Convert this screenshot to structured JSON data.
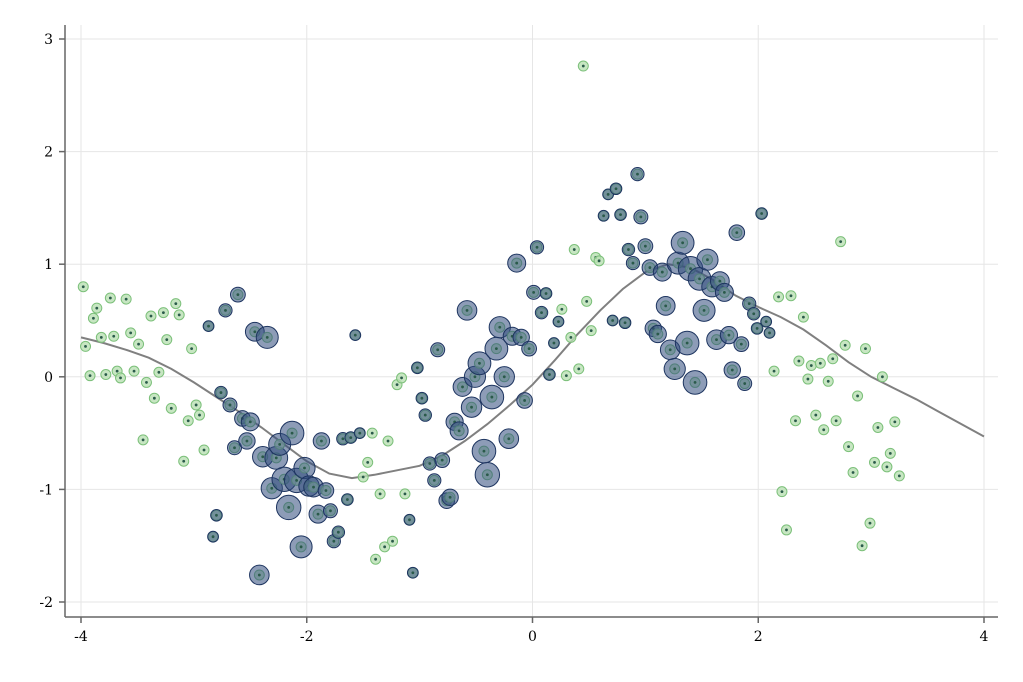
{
  "chart_data": {
    "type": "scatter",
    "title": "",
    "xlabel": "",
    "ylabel": "",
    "xlim": [
      -4,
      4
    ],
    "ylim": [
      -2,
      3
    ],
    "xticks": [
      -4,
      -2,
      0,
      2,
      4
    ],
    "xtick_labels": [
      "-4",
      "-2",
      "0",
      "2",
      "4"
    ],
    "yticks": [
      -2,
      -1,
      0,
      1,
      2,
      3
    ],
    "ytick_labels": [
      "-2",
      "-1",
      "0",
      "1",
      "2",
      "3"
    ],
    "grid": true,
    "colors": {
      "ring_fill": "#b9e0b3",
      "ring_stroke": "#7cc07a",
      "bubble_fill": "#2f4b7c",
      "bubble_stroke": "#1e3560",
      "trend": "#808080"
    },
    "points": [
      {
        "x": -3.98,
        "y": 0.8,
        "w": 0
      },
      {
        "x": -3.96,
        "y": 0.27,
        "w": 0
      },
      {
        "x": -3.92,
        "y": 0.01,
        "w": 0
      },
      {
        "x": -3.89,
        "y": 0.52,
        "w": 0
      },
      {
        "x": -3.86,
        "y": 0.61,
        "w": 0
      },
      {
        "x": -3.82,
        "y": 0.35,
        "w": 0
      },
      {
        "x": -3.78,
        "y": 0.02,
        "w": 0
      },
      {
        "x": -3.74,
        "y": 0.7,
        "w": 0
      },
      {
        "x": -3.71,
        "y": 0.36,
        "w": 0
      },
      {
        "x": -3.68,
        "y": 0.05,
        "w": 0
      },
      {
        "x": -3.65,
        "y": -0.01,
        "w": 0
      },
      {
        "x": -3.6,
        "y": 0.69,
        "w": 0
      },
      {
        "x": -3.56,
        "y": 0.39,
        "w": 0
      },
      {
        "x": -3.53,
        "y": 0.05,
        "w": 0
      },
      {
        "x": -3.49,
        "y": 0.29,
        "w": 0
      },
      {
        "x": -3.45,
        "y": -0.56,
        "w": 0
      },
      {
        "x": -3.42,
        "y": -0.05,
        "w": 0
      },
      {
        "x": -3.38,
        "y": 0.54,
        "w": 0
      },
      {
        "x": -3.35,
        "y": -0.19,
        "w": 0
      },
      {
        "x": -3.31,
        "y": 0.04,
        "w": 0
      },
      {
        "x": -3.27,
        "y": 0.57,
        "w": 0
      },
      {
        "x": -3.24,
        "y": 0.33,
        "w": 0
      },
      {
        "x": -3.2,
        "y": -0.28,
        "w": 0
      },
      {
        "x": -3.16,
        "y": 0.65,
        "w": 0
      },
      {
        "x": -3.13,
        "y": 0.55,
        "w": 0
      },
      {
        "x": -3.09,
        "y": -0.75,
        "w": 0
      },
      {
        "x": -3.05,
        "y": -0.39,
        "w": 0
      },
      {
        "x": -3.02,
        "y": 0.25,
        "w": 0
      },
      {
        "x": -2.98,
        "y": -0.25,
        "w": 0
      },
      {
        "x": -2.95,
        "y": -0.34,
        "w": 0
      },
      {
        "x": -2.91,
        "y": -0.65,
        "w": 0
      },
      {
        "x": -2.87,
        "y": 0.45,
        "w": 0.05
      },
      {
        "x": -2.83,
        "y": -1.42,
        "w": 0.05
      },
      {
        "x": -2.8,
        "y": -1.23,
        "w": 0.1
      },
      {
        "x": -2.76,
        "y": -0.14,
        "w": 0.15
      },
      {
        "x": -2.72,
        "y": 0.59,
        "w": 0.2
      },
      {
        "x": -2.68,
        "y": -0.25,
        "w": 0.25
      },
      {
        "x": -2.64,
        "y": -0.63,
        "w": 0.25
      },
      {
        "x": -2.61,
        "y": 0.73,
        "w": 0.3
      },
      {
        "x": -2.57,
        "y": -0.37,
        "w": 0.35
      },
      {
        "x": -2.53,
        "y": -0.57,
        "w": 0.4
      },
      {
        "x": -2.5,
        "y": -0.4,
        "w": 0.5
      },
      {
        "x": -2.46,
        "y": 0.4,
        "w": 0.55
      },
      {
        "x": -2.42,
        "y": -1.76,
        "w": 0.6
      },
      {
        "x": -2.39,
        "y": -0.71,
        "w": 0.65
      },
      {
        "x": -2.35,
        "y": 0.35,
        "w": 0.75
      },
      {
        "x": -2.31,
        "y": -0.99,
        "w": 0.7
      },
      {
        "x": -2.27,
        "y": -0.72,
        "w": 0.8
      },
      {
        "x": -2.24,
        "y": -0.6,
        "w": 0.75
      },
      {
        "x": -2.2,
        "y": -0.91,
        "w": 0.9
      },
      {
        "x": -2.16,
        "y": -1.16,
        "w": 0.9
      },
      {
        "x": -2.13,
        "y": -0.5,
        "w": 0.85
      },
      {
        "x": -2.09,
        "y": -0.92,
        "w": 0.9
      },
      {
        "x": -2.05,
        "y": -1.51,
        "w": 0.75
      },
      {
        "x": -2.02,
        "y": -0.81,
        "w": 0.7
      },
      {
        "x": -1.98,
        "y": -0.97,
        "w": 0.65
      },
      {
        "x": -1.94,
        "y": -0.98,
        "w": 0.6
      },
      {
        "x": -1.9,
        "y": -1.22,
        "w": 0.5
      },
      {
        "x": -1.87,
        "y": -0.57,
        "w": 0.4
      },
      {
        "x": -1.83,
        "y": -1.01,
        "w": 0.35
      },
      {
        "x": -1.79,
        "y": -1.19,
        "w": 0.25
      },
      {
        "x": -1.76,
        "y": -1.46,
        "w": 0.2
      },
      {
        "x": -1.72,
        "y": -1.38,
        "w": 0.15
      },
      {
        "x": -1.68,
        "y": -0.55,
        "w": 0.15
      },
      {
        "x": -1.64,
        "y": -1.09,
        "w": 0.1
      },
      {
        "x": -1.61,
        "y": -0.54,
        "w": 0.1
      },
      {
        "x": -1.57,
        "y": 0.37,
        "w": 0.05
      },
      {
        "x": -1.53,
        "y": -0.5,
        "w": 0.05
      },
      {
        "x": -1.5,
        "y": -0.89,
        "w": 0
      },
      {
        "x": -1.46,
        "y": -0.76,
        "w": 0
      },
      {
        "x": -1.42,
        "y": -0.5,
        "w": 0
      },
      {
        "x": -1.39,
        "y": -1.62,
        "w": 0
      },
      {
        "x": -1.35,
        "y": -1.04,
        "w": 0
      },
      {
        "x": -1.31,
        "y": -1.51,
        "w": 0
      },
      {
        "x": -1.28,
        "y": -0.57,
        "w": 0
      },
      {
        "x": -1.24,
        "y": -1.46,
        "w": 0
      },
      {
        "x": -1.2,
        "y": -0.07,
        "w": 0
      },
      {
        "x": -1.16,
        "y": -0.01,
        "w": 0
      },
      {
        "x": -1.13,
        "y": -1.04,
        "w": 0
      },
      {
        "x": -1.09,
        "y": -1.27,
        "w": 0.05
      },
      {
        "x": -1.06,
        "y": -1.74,
        "w": 0.05
      },
      {
        "x": -1.02,
        "y": 0.08,
        "w": 0.1
      },
      {
        "x": -0.98,
        "y": -0.19,
        "w": 0.1
      },
      {
        "x": -0.95,
        "y": -0.34,
        "w": 0.15
      },
      {
        "x": -0.91,
        "y": -0.77,
        "w": 0.2
      },
      {
        "x": -0.87,
        "y": -0.92,
        "w": 0.2
      },
      {
        "x": -0.84,
        "y": 0.24,
        "w": 0.25
      },
      {
        "x": -0.8,
        "y": -0.74,
        "w": 0.3
      },
      {
        "x": -0.76,
        "y": -1.1,
        "w": 0.35
      },
      {
        "x": -0.73,
        "y": -1.07,
        "w": 0.4
      },
      {
        "x": -0.69,
        "y": -0.4,
        "w": 0.45
      },
      {
        "x": -0.65,
        "y": -0.48,
        "w": 0.5
      },
      {
        "x": -0.62,
        "y": -0.09,
        "w": 0.55
      },
      {
        "x": -0.58,
        "y": 0.59,
        "w": 0.6
      },
      {
        "x": -0.54,
        "y": -0.27,
        "w": 0.65
      },
      {
        "x": -0.51,
        "y": 0.0,
        "w": 0.7
      },
      {
        "x": -0.47,
        "y": 0.12,
        "w": 0.8
      },
      {
        "x": -0.43,
        "y": -0.66,
        "w": 0.85
      },
      {
        "x": -0.4,
        "y": -0.87,
        "w": 0.9
      },
      {
        "x": -0.36,
        "y": -0.18,
        "w": 0.85
      },
      {
        "x": -0.32,
        "y": 0.25,
        "w": 0.8
      },
      {
        "x": -0.29,
        "y": 0.44,
        "w": 0.7
      },
      {
        "x": -0.25,
        "y": 0.0,
        "w": 0.65
      },
      {
        "x": -0.21,
        "y": -0.55,
        "w": 0.6
      },
      {
        "x": -0.18,
        "y": 0.36,
        "w": 0.5
      },
      {
        "x": -0.14,
        "y": 1.01,
        "w": 0.5
      },
      {
        "x": -0.1,
        "y": 0.35,
        "w": 0.4
      },
      {
        "x": -0.07,
        "y": -0.21,
        "w": 0.35
      },
      {
        "x": -0.03,
        "y": 0.25,
        "w": 0.3
      },
      {
        "x": 0.01,
        "y": 0.75,
        "w": 0.25
      },
      {
        "x": 0.04,
        "y": 1.15,
        "w": 0.2
      },
      {
        "x": 0.08,
        "y": 0.57,
        "w": 0.15
      },
      {
        "x": 0.12,
        "y": 0.74,
        "w": 0.1
      },
      {
        "x": 0.15,
        "y": 0.02,
        "w": 0.1
      },
      {
        "x": 0.19,
        "y": 0.3,
        "w": 0.05
      },
      {
        "x": 0.23,
        "y": 0.49,
        "w": 0.05
      },
      {
        "x": 0.26,
        "y": 0.6,
        "w": 0
      },
      {
        "x": 0.3,
        "y": 0.01,
        "w": 0
      },
      {
        "x": 0.34,
        "y": 0.35,
        "w": 0
      },
      {
        "x": 0.37,
        "y": 1.13,
        "w": 0
      },
      {
        "x": 0.41,
        "y": 0.07,
        "w": 0
      },
      {
        "x": 0.45,
        "y": 2.76,
        "w": 0
      },
      {
        "x": 0.48,
        "y": 0.67,
        "w": 0
      },
      {
        "x": 0.52,
        "y": 0.41,
        "w": 0
      },
      {
        "x": 0.56,
        "y": 1.06,
        "w": 0
      },
      {
        "x": 0.59,
        "y": 1.03,
        "w": 0
      },
      {
        "x": 0.63,
        "y": 1.43,
        "w": 0.05
      },
      {
        "x": 0.67,
        "y": 1.62,
        "w": 0.05
      },
      {
        "x": 0.71,
        "y": 0.5,
        "w": 0.05
      },
      {
        "x": 0.74,
        "y": 1.67,
        "w": 0.1
      },
      {
        "x": 0.78,
        "y": 1.44,
        "w": 0.1
      },
      {
        "x": 0.82,
        "y": 0.48,
        "w": 0.1
      },
      {
        "x": 0.85,
        "y": 1.13,
        "w": 0.15
      },
      {
        "x": 0.89,
        "y": 1.01,
        "w": 0.2
      },
      {
        "x": 0.93,
        "y": 1.8,
        "w": 0.2
      },
      {
        "x": 0.96,
        "y": 1.42,
        "w": 0.25
      },
      {
        "x": 1.0,
        "y": 1.16,
        "w": 0.3
      },
      {
        "x": 1.04,
        "y": 0.97,
        "w": 0.35
      },
      {
        "x": 1.07,
        "y": 0.43,
        "w": 0.4
      },
      {
        "x": 1.11,
        "y": 0.38,
        "w": 0.45
      },
      {
        "x": 1.15,
        "y": 0.93,
        "w": 0.5
      },
      {
        "x": 1.18,
        "y": 0.63,
        "w": 0.55
      },
      {
        "x": 1.22,
        "y": 0.24,
        "w": 0.6
      },
      {
        "x": 1.26,
        "y": 0.07,
        "w": 0.7
      },
      {
        "x": 1.29,
        "y": 1.01,
        "w": 0.75
      },
      {
        "x": 1.33,
        "y": 1.19,
        "w": 0.8
      },
      {
        "x": 1.37,
        "y": 0.3,
        "w": 0.85
      },
      {
        "x": 1.4,
        "y": 0.96,
        "w": 0.9
      },
      {
        "x": 1.44,
        "y": -0.05,
        "w": 0.85
      },
      {
        "x": 1.48,
        "y": 0.87,
        "w": 0.8
      },
      {
        "x": 1.52,
        "y": 0.59,
        "w": 0.75
      },
      {
        "x": 1.55,
        "y": 1.04,
        "w": 0.7
      },
      {
        "x": 1.59,
        "y": 0.8,
        "w": 0.65
      },
      {
        "x": 1.63,
        "y": 0.33,
        "w": 0.6
      },
      {
        "x": 1.66,
        "y": 0.85,
        "w": 0.55
      },
      {
        "x": 1.7,
        "y": 0.75,
        "w": 0.5
      },
      {
        "x": 1.74,
        "y": 0.37,
        "w": 0.45
      },
      {
        "x": 1.77,
        "y": 0.06,
        "w": 0.4
      },
      {
        "x": 1.81,
        "y": 1.28,
        "w": 0.35
      },
      {
        "x": 1.85,
        "y": 0.29,
        "w": 0.3
      },
      {
        "x": 1.88,
        "y": -0.06,
        "w": 0.25
      },
      {
        "x": 1.92,
        "y": 0.65,
        "w": 0.2
      },
      {
        "x": 1.96,
        "y": 0.56,
        "w": 0.15
      },
      {
        "x": 1.99,
        "y": 0.43,
        "w": 0.1
      },
      {
        "x": 2.03,
        "y": 1.45,
        "w": 0.1
      },
      {
        "x": 2.07,
        "y": 0.49,
        "w": 0.05
      },
      {
        "x": 2.1,
        "y": 0.39,
        "w": 0.05
      },
      {
        "x": 2.14,
        "y": 0.05,
        "w": 0
      },
      {
        "x": 2.18,
        "y": 0.71,
        "w": 0
      },
      {
        "x": 2.21,
        "y": -1.02,
        "w": 0
      },
      {
        "x": 2.25,
        "y": -1.36,
        "w": 0
      },
      {
        "x": 2.29,
        "y": 0.72,
        "w": 0
      },
      {
        "x": 2.33,
        "y": -0.39,
        "w": 0
      },
      {
        "x": 2.36,
        "y": 0.14,
        "w": 0
      },
      {
        "x": 2.4,
        "y": 0.53,
        "w": 0
      },
      {
        "x": 2.44,
        "y": -0.02,
        "w": 0
      },
      {
        "x": 2.47,
        "y": 0.1,
        "w": 0
      },
      {
        "x": 2.51,
        "y": -0.34,
        "w": 0
      },
      {
        "x": 2.55,
        "y": 0.12,
        "w": 0
      },
      {
        "x": 2.58,
        "y": -0.47,
        "w": 0
      },
      {
        "x": 2.62,
        "y": -0.04,
        "w": 0
      },
      {
        "x": 2.66,
        "y": 0.16,
        "w": 0
      },
      {
        "x": 2.69,
        "y": -0.39,
        "w": 0
      },
      {
        "x": 2.73,
        "y": 1.2,
        "w": 0
      },
      {
        "x": 2.77,
        "y": 0.28,
        "w": 0
      },
      {
        "x": 2.8,
        "y": -0.62,
        "w": 0
      },
      {
        "x": 2.84,
        "y": -0.85,
        "w": 0
      },
      {
        "x": 2.88,
        "y": -0.17,
        "w": 0
      },
      {
        "x": 2.92,
        "y": -1.5,
        "w": 0
      },
      {
        "x": 2.95,
        "y": 0.25,
        "w": 0
      },
      {
        "x": 2.99,
        "y": -1.3,
        "w": 0
      },
      {
        "x": 3.03,
        "y": -0.76,
        "w": 0
      },
      {
        "x": 3.06,
        "y": -0.45,
        "w": 0
      },
      {
        "x": 3.1,
        "y": 0.0,
        "w": 0
      },
      {
        "x": 3.14,
        "y": -0.8,
        "w": 0
      },
      {
        "x": 3.17,
        "y": -0.68,
        "w": 0
      },
      {
        "x": 3.21,
        "y": -0.4,
        "w": 0
      },
      {
        "x": 3.25,
        "y": -0.88,
        "w": 0
      }
    ],
    "trend": {
      "x": [
        -4.0,
        -3.8,
        -3.6,
        -3.4,
        -3.2,
        -3.0,
        -2.8,
        -2.6,
        -2.4,
        -2.2,
        -2.0,
        -1.8,
        -1.6,
        -1.4,
        -1.2,
        -1.0,
        -0.8,
        -0.6,
        -0.4,
        -0.2,
        0.0,
        0.2,
        0.4,
        0.6,
        0.8,
        1.0,
        1.2,
        1.4,
        1.6,
        1.8,
        2.0,
        2.2,
        2.4,
        2.6,
        2.8,
        3.0,
        3.2,
        3.4,
        3.6,
        3.8,
        4.0
      ],
      "y": [
        0.35,
        0.3,
        0.24,
        0.17,
        0.07,
        -0.05,
        -0.18,
        -0.31,
        -0.45,
        -0.6,
        -0.75,
        -0.86,
        -0.9,
        -0.87,
        -0.83,
        -0.79,
        -0.7,
        -0.57,
        -0.42,
        -0.25,
        -0.07,
        0.15,
        0.38,
        0.59,
        0.78,
        0.93,
        1.0,
        0.97,
        0.86,
        0.72,
        0.62,
        0.53,
        0.42,
        0.28,
        0.13,
        0.0,
        -0.1,
        -0.2,
        -0.31,
        -0.42,
        -0.53
      ]
    }
  }
}
